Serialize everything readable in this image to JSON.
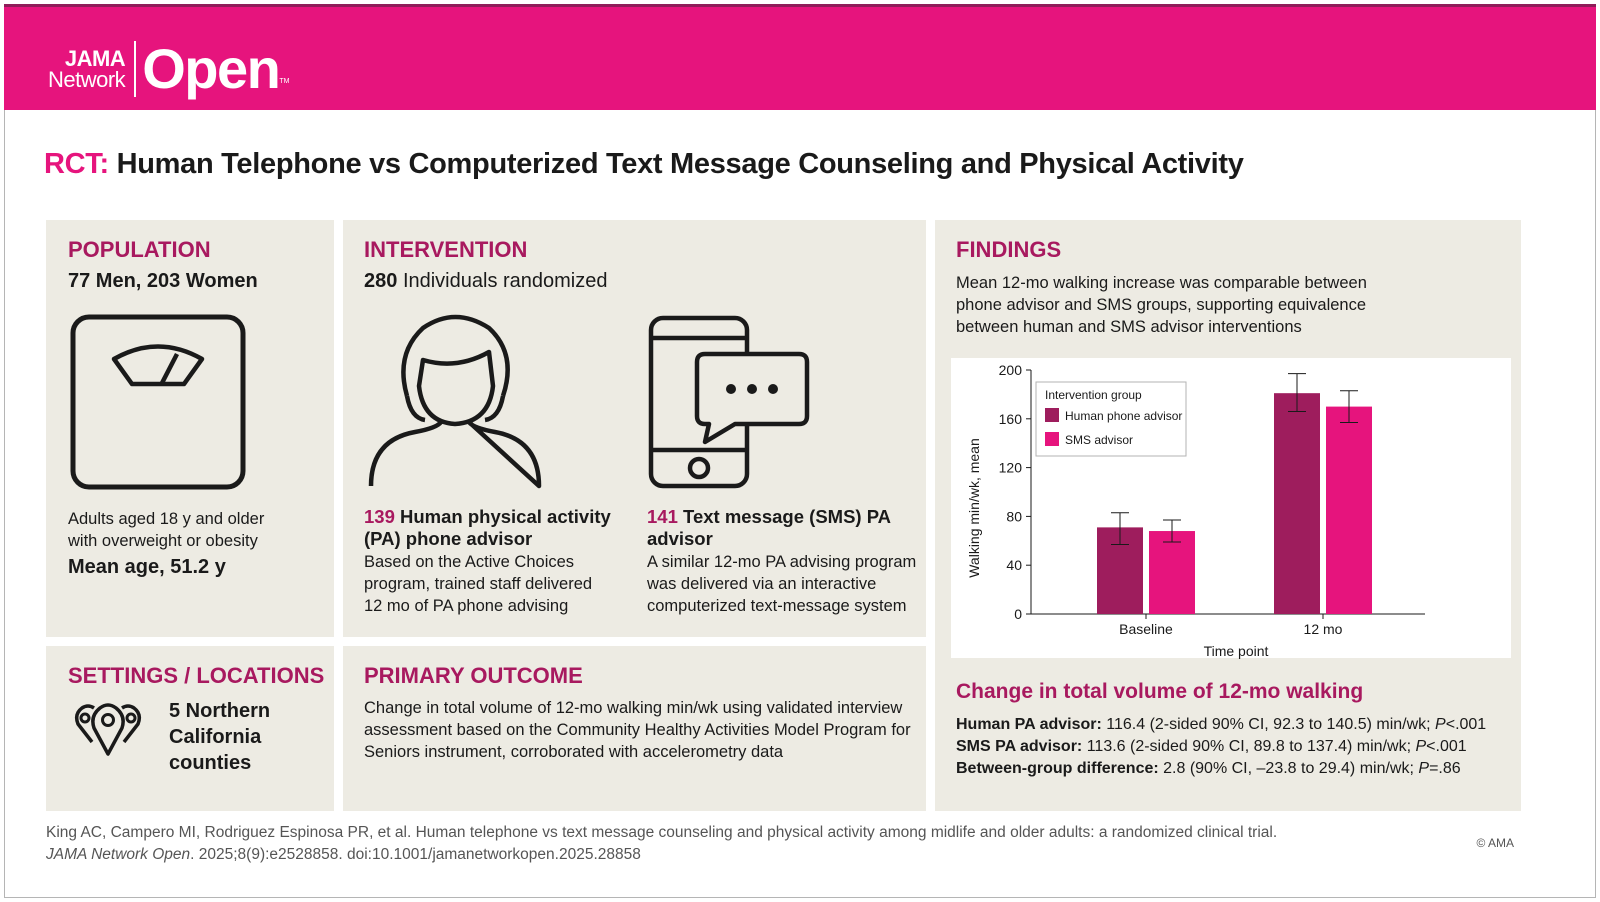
{
  "brand": {
    "line1": "JAMA",
    "line2": "Network",
    "open": "Open",
    "tm": "TM"
  },
  "title": {
    "prefix": "RCT:",
    "text": "Human Telephone vs Computerized Text Message Counseling and Physical Activity"
  },
  "population": {
    "heading": "POPULATION",
    "counts": "77 Men, 203 Women",
    "desc_line1": "Adults aged 18 y and older",
    "desc_line2": "with overweight or obesity",
    "mean_age": "Mean age, 51.2 y"
  },
  "intervention": {
    "heading": "INTERVENTION",
    "randomized_num": "280",
    "randomized_text": "Individuals randomized",
    "human": {
      "num": "139",
      "title_rest": "Human physical activity",
      "title_line2": "(PA) phone advisor",
      "desc_line1": "Based on the Active Choices",
      "desc_line2": "program, trained staff delivered",
      "desc_line3": "12 mo of PA phone advising"
    },
    "sms": {
      "num": "141",
      "title_rest": "Text message (SMS) PA",
      "title_line2": "advisor",
      "desc_line1": "A similar 12-mo PA advising program",
      "desc_line2": "was delivered via an interactive",
      "desc_line3": "computerized text-message system"
    }
  },
  "settings": {
    "heading": "SETTINGS / LOCATIONS",
    "line1": "5 Northern",
    "line2": "California",
    "line3": "counties"
  },
  "outcome": {
    "heading": "PRIMARY OUTCOME",
    "line1": "Change in total volume of 12-mo walking min/wk using validated interview",
    "line2": "assessment based on the Community Healthy Activities Model Program for",
    "line3": "Seniors instrument, corroborated with accelerometry data"
  },
  "findings": {
    "heading": "FINDINGS",
    "line1": "Mean 12-mo walking increase was comparable between",
    "line2": "phone advisor and SMS groups, supporting equivalence",
    "line3": "between human and SMS advisor interventions",
    "subheading": "Change in total volume of 12-mo walking",
    "results": [
      {
        "label": "Human PA advisor:",
        "text": "116.4 (2-sided 90% CI, 92.3 to 140.5) min/wk;",
        "p_label": "P",
        "p_value": "<.001"
      },
      {
        "label": "SMS PA advisor:",
        "text": "113.6 (2-sided 90% CI, 89.8 to 137.4) min/wk;",
        "p_label": "P",
        "p_value": "<.001"
      },
      {
        "label": "Between-group difference:",
        "text": "2.8 (90% CI, –23.8 to 29.4) min/wk;",
        "p_label": "P",
        "p_value": "=.86"
      }
    ]
  },
  "chart_data": {
    "type": "bar",
    "categories": [
      "Baseline",
      "12 mo"
    ],
    "series": [
      {
        "name": "Human phone advisor",
        "color": "#9e1d5d",
        "values": [
          71,
          181
        ],
        "error_low": [
          57,
          166
        ],
        "error_high": [
          83,
          197
        ]
      },
      {
        "name": "SMS advisor",
        "color": "#e6147d",
        "values": [
          68,
          170
        ],
        "error_low": [
          59,
          157
        ],
        "error_high": [
          77,
          183
        ]
      }
    ],
    "xlabel": "Time point",
    "ylabel": "Walking min/wk, mean",
    "ylim": [
      0,
      200
    ],
    "yticks": [
      "0",
      "40",
      "80",
      "120",
      "160",
      "200"
    ],
    "legend_title": "Intervention group",
    "legend_position": "top-left",
    "grid": false
  },
  "citation": {
    "line1": "King AC, Campero MI, Rodriguez Espinosa PR, et al. Human telephone vs text message counseling and physical activity among midlife and older adults: a randomized clinical trial.",
    "journal": "JAMA Network Open",
    "line2_rest": ". 2025;8(9):e2528858. doi:10.1001/jamanetworkopen.2025.28858"
  },
  "copyright": "© AMA",
  "icons": {
    "population": "scale-icon",
    "human": "person-icon",
    "sms": "phone-chat-icon",
    "settings": "map-pins-icon"
  }
}
